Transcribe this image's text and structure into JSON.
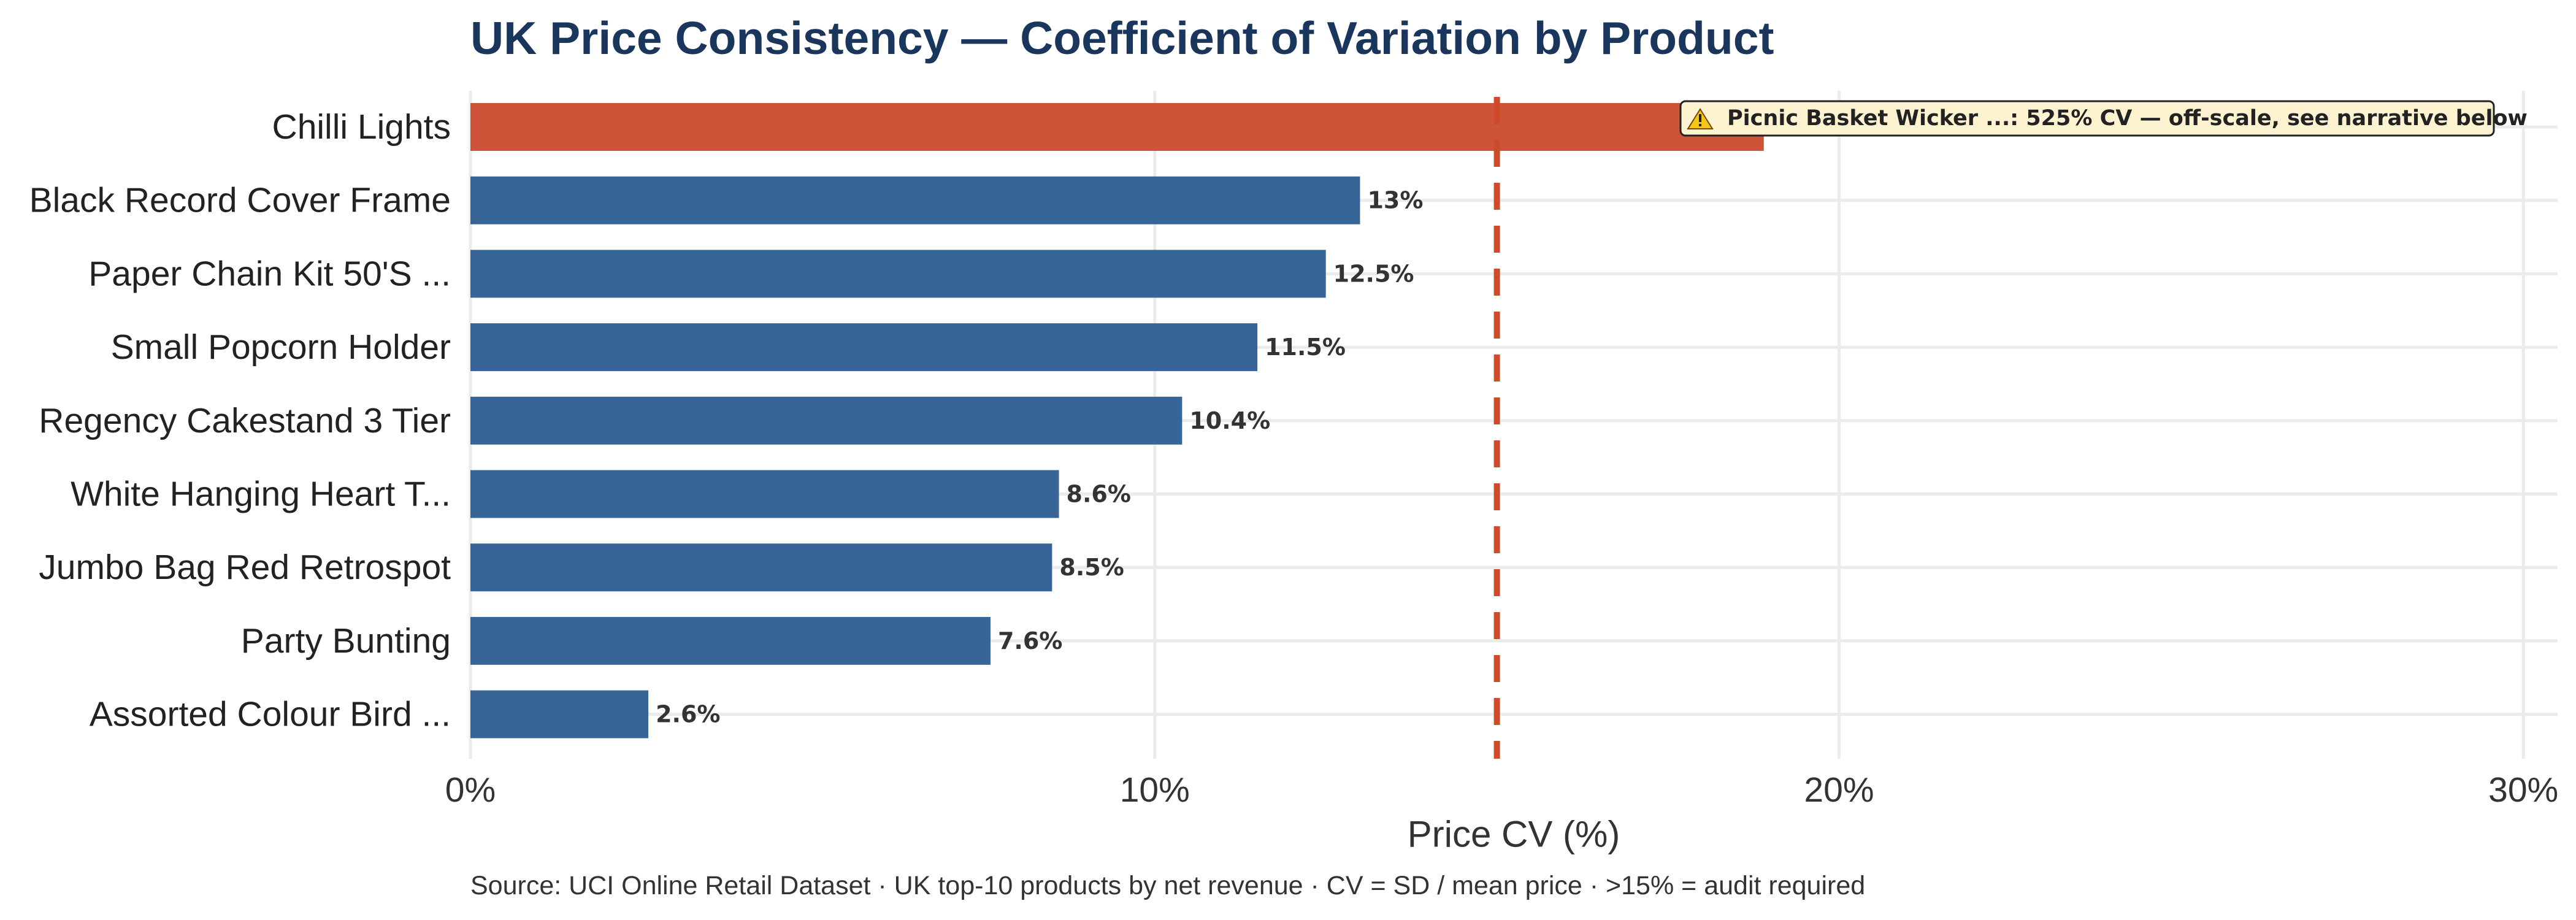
{
  "chart_data": {
    "type": "bar",
    "orientation": "horizontal",
    "title": "UK Price Consistency — Coefficient of Variation by Product",
    "xlabel": "Price CV (%)",
    "ylabel": "",
    "xlim": [
      0,
      30.5
    ],
    "xticks": [
      0,
      10,
      20,
      30
    ],
    "xtick_labels": [
      "0%",
      "10%",
      "20%",
      "30%"
    ],
    "grid": true,
    "categories": [
      "Chilli Lights",
      "Black Record Cover Frame",
      "Paper Chain Kit 50'S ...",
      "Small Popcorn Holder",
      "Regency Cakestand 3 Tier",
      "White Hanging Heart T...",
      "Jumbo Bag Red Retrospot",
      "Party Bunting",
      "Assorted Colour Bird ..."
    ],
    "values": [
      18.9,
      13.0,
      12.5,
      11.5,
      10.4,
      8.6,
      8.5,
      7.6,
      2.6
    ],
    "data_labels": [
      "",
      "13%",
      "12.5%",
      "11.5%",
      "10.4%",
      "8.6%",
      "8.5%",
      "7.6%",
      "2.6%"
    ],
    "highlighted": [
      true,
      false,
      false,
      false,
      false,
      false,
      false,
      false,
      false
    ],
    "threshold": 15,
    "annotation": "Picnic Basket Wicker ...: 525% CV — off-scale, see narrative below",
    "annotation_icon": "warning-icon",
    "caption": "Source: UCI Online Retail Dataset · UK top-10 products by net revenue · CV = SD / mean price · >15% = audit required",
    "colors": {
      "bar": "#376598",
      "highlight": "#cd5438",
      "threshold": "#cd4a2a",
      "title": "#1b365d",
      "grid": "#ebebeb",
      "annotation_fill": "#fdf3d0"
    }
  }
}
